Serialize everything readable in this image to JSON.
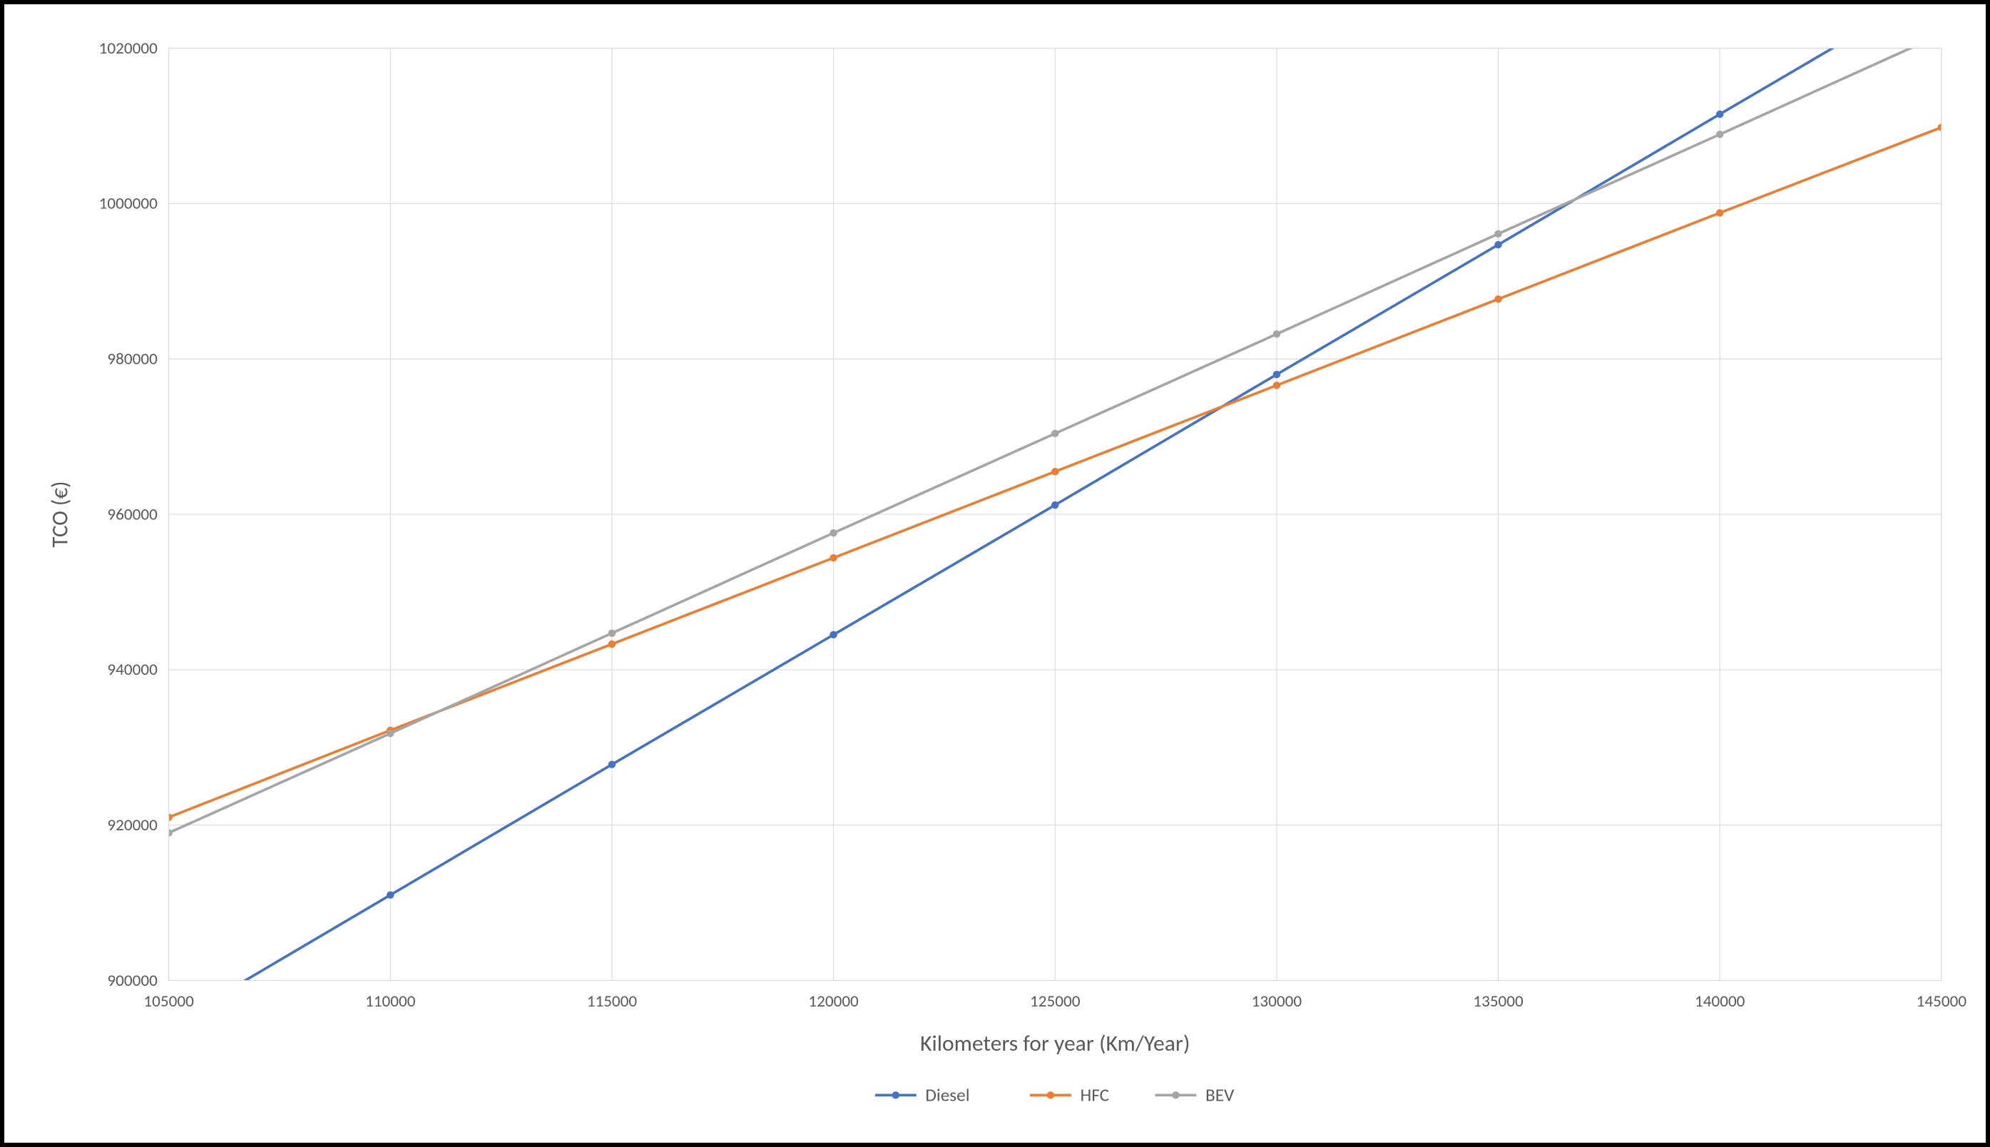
{
  "chart": {
    "type": "line",
    "background_color": "#ffffff",
    "border_color": "#000000",
    "grid_color": "#d9d9d9",
    "text_color": "#595959",
    "label_fontsize": 22,
    "axis_title_fontsize": 30,
    "legend_fontsize": 24,
    "line_width": 3.5,
    "marker_radius": 5,
    "x": {
      "title": "Kilometers for year (Km/Year)",
      "min": 105000,
      "max": 145000,
      "tick_step": 5000,
      "ticks": [
        105000,
        110000,
        115000,
        120000,
        125000,
        130000,
        135000,
        140000,
        145000
      ]
    },
    "y": {
      "title": "TCO (€)",
      "min": 900000,
      "max": 1020000,
      "tick_step": 20000,
      "ticks": [
        900000,
        920000,
        940000,
        960000,
        980000,
        1000000,
        1020000
      ]
    },
    "series": [
      {
        "name": "Diesel",
        "color": "#4472c4",
        "x": [
          105000,
          110000,
          115000,
          120000,
          125000,
          130000,
          135000,
          140000,
          145000
        ],
        "y": [
          894200,
          911000,
          927800,
          944500,
          961200,
          978000,
          994700,
          1011500,
          1028200
        ]
      },
      {
        "name": "HFC",
        "color": "#ed7d31",
        "x": [
          105000,
          110000,
          115000,
          120000,
          125000,
          130000,
          135000,
          140000,
          145000
        ],
        "y": [
          921000,
          932200,
          943300,
          954400,
          965500,
          976600,
          987700,
          998800,
          1009800
        ]
      },
      {
        "name": "BEV",
        "color": "#a5a5a5",
        "x": [
          105000,
          110000,
          115000,
          120000,
          125000,
          130000,
          135000,
          140000,
          145000
        ],
        "y": [
          919000,
          931800,
          944700,
          957600,
          970400,
          983200,
          996100,
          1008900,
          1021800
        ]
      }
    ],
    "legend": {
      "position": "bottom",
      "items": [
        "Diesel",
        "HFC",
        "BEV"
      ]
    }
  }
}
